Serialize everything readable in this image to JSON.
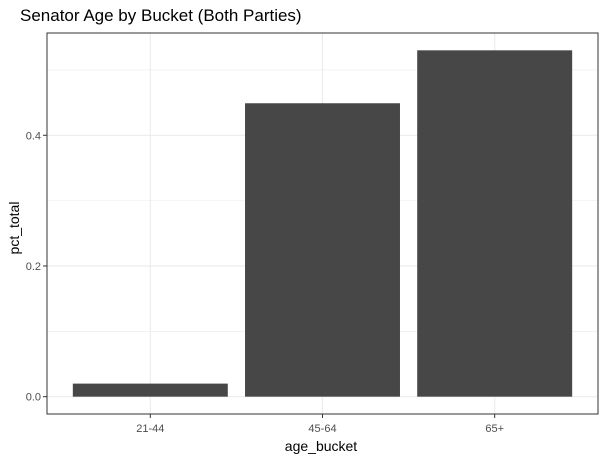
{
  "chart_data": {
    "type": "bar",
    "title": "Senator Age by Bucket (Both Parties)",
    "xlabel": "age_bucket",
    "ylabel": "pct_total",
    "categories": [
      "21-44",
      "45-64",
      "65+"
    ],
    "values": [
      0.02,
      0.449,
      0.53
    ],
    "ylim": [
      -0.0265,
      0.5565
    ],
    "yticks": [
      0.0,
      0.2,
      0.4
    ],
    "ytick_labels": [
      "0.0",
      "0.2",
      "0.4"
    ],
    "grid": true,
    "legend": "none",
    "colors": {
      "bar": "#474747",
      "grid": "#ebebeb",
      "panel_border": "#333333",
      "tick_label": "#4d4d4d",
      "background": "#ffffff"
    }
  }
}
